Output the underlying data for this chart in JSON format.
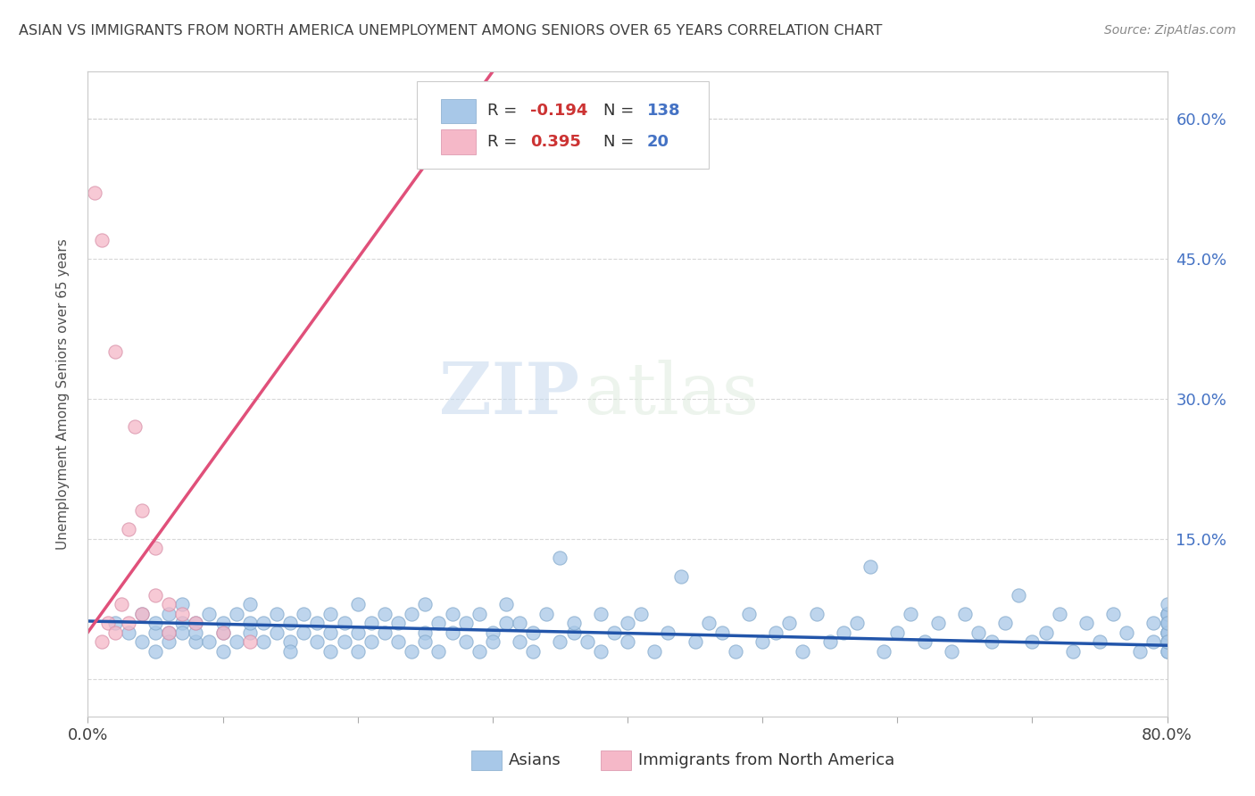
{
  "title": "ASIAN VS IMMIGRANTS FROM NORTH AMERICA UNEMPLOYMENT AMONG SENIORS OVER 65 YEARS CORRELATION CHART",
  "source": "Source: ZipAtlas.com",
  "ylabel": "Unemployment Among Seniors over 65 years",
  "xlim": [
    0.0,
    0.8
  ],
  "ylim": [
    -0.04,
    0.65
  ],
  "blue_R": -0.194,
  "blue_N": 138,
  "pink_R": 0.395,
  "pink_N": 20,
  "blue_color": "#a8c8e8",
  "blue_edge_color": "#85aacc",
  "blue_line_color": "#2255aa",
  "pink_color": "#f5b8c8",
  "pink_edge_color": "#d890a8",
  "pink_line_color": "#e0507a",
  "legend_label_blue": "Asians",
  "legend_label_pink": "Immigrants from North America",
  "watermark_zip": "ZIP",
  "watermark_atlas": "atlas",
  "background_color": "#ffffff",
  "grid_color": "#d8d8d8",
  "axis_color": "#cccccc",
  "right_ytick_color": "#4472c4",
  "title_color": "#404040",
  "blue_x": [
    0.02,
    0.03,
    0.04,
    0.04,
    0.05,
    0.05,
    0.05,
    0.06,
    0.06,
    0.06,
    0.07,
    0.07,
    0.07,
    0.08,
    0.08,
    0.08,
    0.09,
    0.09,
    0.1,
    0.1,
    0.1,
    0.11,
    0.11,
    0.12,
    0.12,
    0.12,
    0.13,
    0.13,
    0.14,
    0.14,
    0.15,
    0.15,
    0.15,
    0.16,
    0.16,
    0.17,
    0.17,
    0.18,
    0.18,
    0.18,
    0.19,
    0.19,
    0.2,
    0.2,
    0.2,
    0.21,
    0.21,
    0.22,
    0.22,
    0.23,
    0.23,
    0.24,
    0.24,
    0.25,
    0.25,
    0.25,
    0.26,
    0.26,
    0.27,
    0.27,
    0.28,
    0.28,
    0.29,
    0.29,
    0.3,
    0.3,
    0.31,
    0.31,
    0.32,
    0.32,
    0.33,
    0.33,
    0.34,
    0.35,
    0.35,
    0.36,
    0.36,
    0.37,
    0.38,
    0.38,
    0.39,
    0.4,
    0.4,
    0.41,
    0.42,
    0.43,
    0.44,
    0.45,
    0.46,
    0.47,
    0.48,
    0.49,
    0.5,
    0.51,
    0.52,
    0.53,
    0.54,
    0.55,
    0.56,
    0.57,
    0.58,
    0.59,
    0.6,
    0.61,
    0.62,
    0.63,
    0.64,
    0.65,
    0.66,
    0.67,
    0.68,
    0.69,
    0.7,
    0.71,
    0.72,
    0.73,
    0.74,
    0.75,
    0.76,
    0.77,
    0.78,
    0.79,
    0.79,
    0.8,
    0.8,
    0.8,
    0.8,
    0.8,
    0.8,
    0.8,
    0.8,
    0.8,
    0.8,
    0.8,
    0.8,
    0.8,
    0.8,
    0.8
  ],
  "blue_y": [
    0.06,
    0.05,
    0.04,
    0.07,
    0.05,
    0.06,
    0.03,
    0.07,
    0.05,
    0.04,
    0.06,
    0.05,
    0.08,
    0.04,
    0.06,
    0.05,
    0.07,
    0.04,
    0.05,
    0.06,
    0.03,
    0.07,
    0.04,
    0.05,
    0.06,
    0.08,
    0.04,
    0.06,
    0.05,
    0.07,
    0.04,
    0.06,
    0.03,
    0.05,
    0.07,
    0.04,
    0.06,
    0.05,
    0.03,
    0.07,
    0.04,
    0.06,
    0.05,
    0.08,
    0.03,
    0.06,
    0.04,
    0.05,
    0.07,
    0.04,
    0.06,
    0.03,
    0.07,
    0.05,
    0.04,
    0.08,
    0.06,
    0.03,
    0.05,
    0.07,
    0.04,
    0.06,
    0.03,
    0.07,
    0.05,
    0.04,
    0.06,
    0.08,
    0.04,
    0.06,
    0.05,
    0.03,
    0.07,
    0.04,
    0.13,
    0.05,
    0.06,
    0.04,
    0.07,
    0.03,
    0.05,
    0.06,
    0.04,
    0.07,
    0.03,
    0.05,
    0.11,
    0.04,
    0.06,
    0.05,
    0.03,
    0.07,
    0.04,
    0.05,
    0.06,
    0.03,
    0.07,
    0.04,
    0.05,
    0.06,
    0.12,
    0.03,
    0.05,
    0.07,
    0.04,
    0.06,
    0.03,
    0.07,
    0.05,
    0.04,
    0.06,
    0.09,
    0.04,
    0.05,
    0.07,
    0.03,
    0.06,
    0.04,
    0.07,
    0.05,
    0.03,
    0.06,
    0.04,
    0.07,
    0.05,
    0.03,
    0.06,
    0.05,
    0.04,
    0.07,
    0.03,
    0.06,
    0.04,
    0.05,
    0.07,
    0.08,
    0.04,
    0.06
  ],
  "pink_x": [
    0.005,
    0.01,
    0.01,
    0.015,
    0.02,
    0.02,
    0.025,
    0.03,
    0.03,
    0.035,
    0.04,
    0.04,
    0.05,
    0.05,
    0.06,
    0.06,
    0.07,
    0.08,
    0.1,
    0.12
  ],
  "pink_y": [
    0.52,
    0.47,
    0.04,
    0.06,
    0.35,
    0.05,
    0.08,
    0.16,
    0.06,
    0.27,
    0.18,
    0.07,
    0.09,
    0.14,
    0.08,
    0.05,
    0.07,
    0.06,
    0.05,
    0.04
  ]
}
